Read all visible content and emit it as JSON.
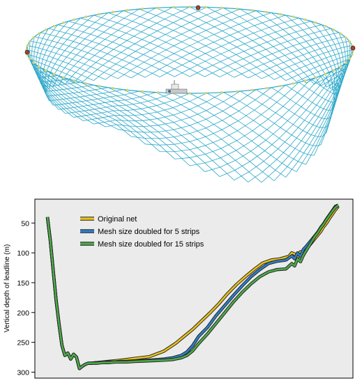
{
  "figure": {
    "top_panel": {
      "net_color": "#2aa7c9",
      "float_color": "#d9d36b",
      "marker_color": "#b0402a"
    },
    "colors": {
      "plot_background": "#ebebeb",
      "frame": "#000000"
    }
  },
  "chart_data": {
    "type": "line",
    "ylabel": "Vertical depth of leadline (m)",
    "xlabel": "",
    "y_inverted": true,
    "ylim": [
      10,
      310
    ],
    "yticks": [
      50,
      100,
      150,
      200,
      250,
      300
    ],
    "xlim": [
      0,
      100
    ],
    "grid": false,
    "legend_position": "top-left",
    "series": [
      {
        "name": "Original net",
        "color": "#e8c21c",
        "x": [
          0,
          1,
          2,
          3,
          4,
          5,
          6,
          7,
          8,
          9,
          10,
          11,
          12,
          13,
          14,
          15,
          17,
          19,
          21,
          23,
          25,
          27,
          30,
          35,
          40,
          44,
          47,
          50,
          53,
          56,
          59,
          62,
          65,
          68,
          71,
          74,
          77,
          80,
          83,
          84,
          85,
          86,
          87,
          88,
          89,
          90,
          91,
          92,
          93,
          94,
          95,
          96,
          97,
          98,
          99,
          100
        ],
        "y": [
          40,
          80,
          130,
          180,
          220,
          255,
          272,
          268,
          278,
          270,
          275,
          294,
          290,
          287,
          285,
          285,
          284,
          283,
          282,
          281,
          280,
          279,
          277,
          274,
          265,
          252,
          240,
          228,
          214,
          200,
          185,
          168,
          153,
          140,
          128,
          117,
          112,
          110,
          106,
          100,
          102,
          108,
          98,
          104,
          92,
          88,
          82,
          76,
          70,
          64,
          56,
          50,
          42,
          35,
          28,
          22
        ]
      },
      {
        "name": "Mesh size doubled for 5 strips",
        "color": "#2f7fc7",
        "x": [
          0,
          1,
          2,
          3,
          4,
          5,
          6,
          7,
          8,
          9,
          10,
          11,
          12,
          13,
          14,
          15,
          17,
          19,
          21,
          23,
          25,
          27,
          30,
          35,
          40,
          43,
          46,
          48,
          50,
          52,
          55,
          58,
          61,
          64,
          67,
          70,
          73,
          76,
          79,
          82,
          84,
          85,
          86,
          87,
          88,
          89,
          90,
          91,
          92,
          93,
          94,
          95,
          96,
          97,
          98,
          99,
          100
        ],
        "y": [
          40,
          80,
          130,
          180,
          220,
          255,
          272,
          268,
          278,
          270,
          275,
          294,
          290,
          287,
          285,
          285,
          284,
          284,
          283,
          283,
          282,
          282,
          281,
          280,
          278,
          276,
          272,
          266,
          255,
          240,
          225,
          205,
          188,
          171,
          155,
          140,
          128,
          118,
          114,
          112,
          105,
          110,
          100,
          106,
          94,
          89,
          83,
          77,
          71,
          65,
          57,
          51,
          43,
          36,
          29,
          22,
          20
        ]
      },
      {
        "name": "Mesh size doubled for 15 strips",
        "color": "#4dab4a",
        "x": [
          0,
          1,
          2,
          3,
          4,
          5,
          6,
          7,
          8,
          9,
          10,
          11,
          12,
          13,
          14,
          15,
          17,
          19,
          21,
          23,
          25,
          27,
          30,
          35,
          40,
          43,
          46,
          48,
          50,
          52,
          55,
          58,
          61,
          64,
          67,
          70,
          73,
          76,
          79,
          82,
          84,
          85,
          86,
          87,
          88,
          89,
          90,
          91,
          92,
          93,
          94,
          95,
          96,
          97,
          98,
          99,
          100
        ],
        "y": [
          40,
          80,
          130,
          180,
          220,
          255,
          272,
          268,
          278,
          270,
          275,
          294,
          290,
          287,
          285,
          285,
          285,
          284,
          284,
          283,
          283,
          283,
          282,
          281,
          280,
          279,
          276,
          272,
          264,
          252,
          236,
          218,
          200,
          182,
          166,
          152,
          140,
          132,
          128,
          127,
          118,
          122,
          110,
          115,
          104,
          96,
          88,
          80,
          72,
          66,
          58,
          52,
          44,
          37,
          30,
          24,
          20
        ]
      }
    ]
  }
}
